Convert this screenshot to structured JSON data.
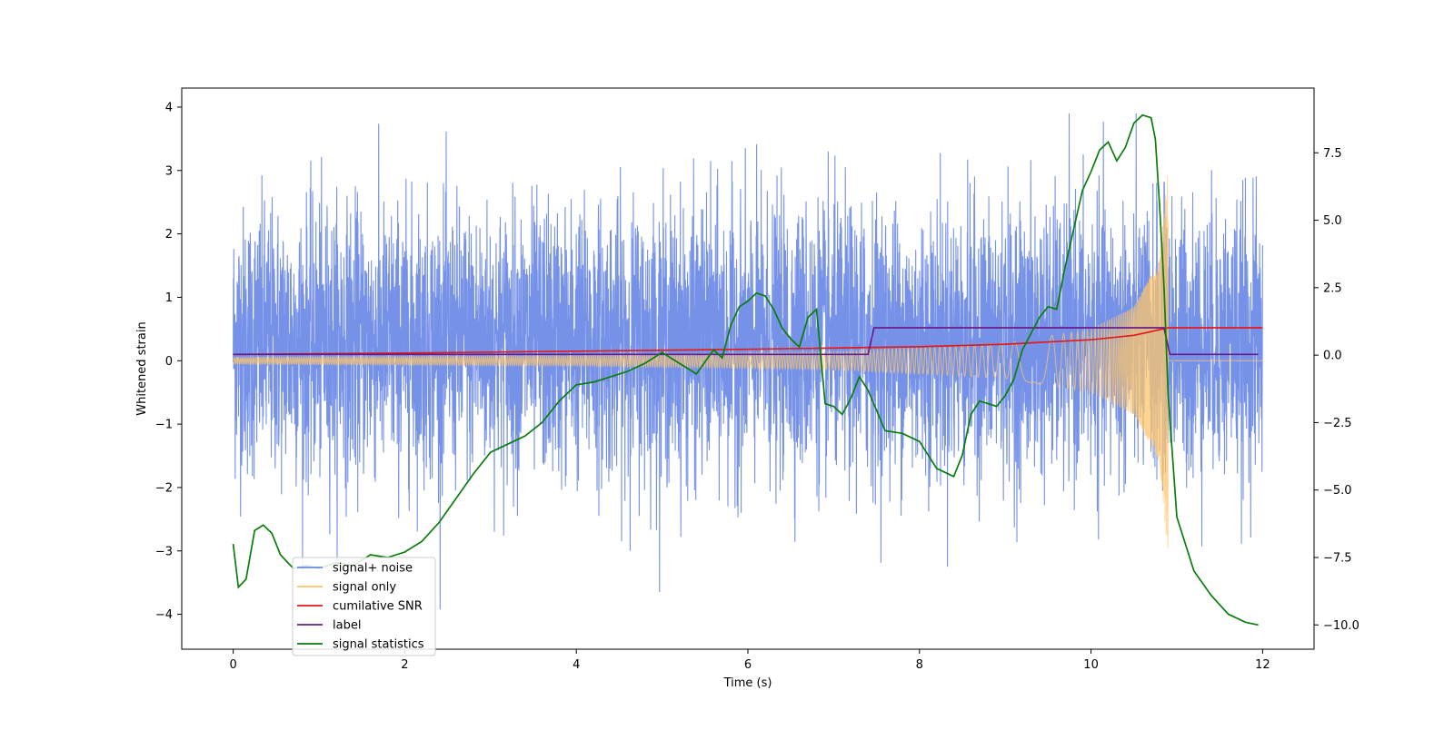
{
  "chart_data": {
    "type": "line",
    "title": "",
    "xlabel": "Time (s)",
    "ylabel": "Whitened strain",
    "xlim": [
      -0.6,
      12.6
    ],
    "ylim": [
      -4.55,
      4.3
    ],
    "y2lim": [
      -10.9,
      9.9
    ],
    "x_ticks": [
      0,
      2,
      4,
      6,
      8,
      10,
      12
    ],
    "x_tick_labels": [
      "0",
      "2",
      "4",
      "6",
      "8",
      "10",
      "12"
    ],
    "y_ticks": [
      -4,
      -3,
      -2,
      -1,
      0,
      1,
      2,
      3,
      4
    ],
    "y_tick_labels": [
      "−4",
      "−3",
      "−2",
      "−1",
      "0",
      "1",
      "2",
      "3",
      "4"
    ],
    "y2_ticks": [
      -10,
      -7.5,
      -5,
      -2.5,
      0,
      2.5,
      5,
      7.5
    ],
    "y2_tick_labels": [
      "−10.0",
      "−7.5",
      "−5.0",
      "−2.5",
      "0.0",
      "2.5",
      "5.0",
      "7.5"
    ],
    "legend_position": "lower-left",
    "series": [
      {
        "name": "signal+ noise",
        "color": "#6a89e6",
        "kind": "noise",
        "x_range": [
          0,
          12
        ],
        "mean": 0.3,
        "std": 1.05,
        "max": 3.9,
        "min": -4.1
      },
      {
        "name": "signal only",
        "color": "#ffc56b",
        "kind": "chirp",
        "x_range": [
          0,
          12
        ],
        "merger_time": 10.9,
        "envelope_points": [
          [
            0,
            0.05
          ],
          [
            4,
            0.08
          ],
          [
            7,
            0.14
          ],
          [
            9,
            0.28
          ],
          [
            10,
            0.5
          ],
          [
            10.5,
            0.85
          ],
          [
            10.8,
            1.6
          ],
          [
            10.9,
            3.1
          ]
        ]
      },
      {
        "name": "cumilative SNR",
        "color": "#e31a1a",
        "axis": "left",
        "x": [
          0,
          2,
          4,
          6,
          8,
          9,
          10,
          10.5,
          10.9,
          11,
          12
        ],
        "y": [
          0.1,
          0.12,
          0.15,
          0.18,
          0.22,
          0.26,
          0.33,
          0.4,
          0.52,
          0.52,
          0.52
        ]
      },
      {
        "name": "label",
        "color": "#6a1b8a",
        "axis": "left",
        "x": [
          0,
          7.4,
          7.47,
          10.85,
          10.92,
          11.95
        ],
        "y": [
          0.1,
          0.1,
          0.52,
          0.52,
          0.1,
          0.1
        ]
      },
      {
        "name": "signal statistics",
        "color": "#0a7d0a",
        "axis": "right",
        "x": [
          0,
          0.06,
          0.15,
          0.25,
          0.35,
          0.45,
          0.55,
          0.7,
          0.85,
          1.0,
          1.2,
          1.4,
          1.6,
          1.8,
          2.0,
          2.2,
          2.4,
          2.6,
          2.8,
          3.0,
          3.2,
          3.4,
          3.6,
          3.8,
          4.0,
          4.2,
          4.4,
          4.6,
          4.8,
          5.0,
          5.2,
          5.4,
          5.6,
          5.7,
          5.8,
          5.9,
          6.0,
          6.1,
          6.2,
          6.3,
          6.4,
          6.5,
          6.6,
          6.7,
          6.8,
          6.9,
          7.0,
          7.1,
          7.2,
          7.3,
          7.4,
          7.6,
          7.8,
          8.0,
          8.2,
          8.4,
          8.5,
          8.6,
          8.7,
          8.8,
          8.9,
          9.0,
          9.1,
          9.2,
          9.3,
          9.4,
          9.5,
          9.6,
          9.7,
          9.8,
          9.9,
          10.0,
          10.1,
          10.2,
          10.3,
          10.4,
          10.5,
          10.6,
          10.7,
          10.75,
          10.8,
          10.85,
          10.9,
          11.0,
          11.2,
          11.4,
          11.6,
          11.8,
          11.95
        ],
        "y": [
          -7.0,
          -8.6,
          -8.3,
          -6.5,
          -6.3,
          -6.6,
          -7.4,
          -7.9,
          -7.8,
          -7.9,
          -7.7,
          -7.8,
          -7.4,
          -7.5,
          -7.3,
          -6.9,
          -6.2,
          -5.3,
          -4.4,
          -3.6,
          -3.3,
          -3.0,
          -2.5,
          -1.7,
          -1.1,
          -1.0,
          -0.8,
          -0.6,
          -0.3,
          0.1,
          -0.3,
          -0.7,
          0.2,
          -0.1,
          1.1,
          1.8,
          2.0,
          2.3,
          2.2,
          1.7,
          1.0,
          0.6,
          0.3,
          1.4,
          1.7,
          -1.8,
          -1.9,
          -2.2,
          -1.6,
          -0.8,
          -1.3,
          -2.8,
          -2.9,
          -3.2,
          -4.2,
          -4.5,
          -3.7,
          -2.2,
          -1.7,
          -1.8,
          -1.9,
          -1.5,
          -0.9,
          0.2,
          0.8,
          1.4,
          1.8,
          1.7,
          3.3,
          4.7,
          6.1,
          6.8,
          7.6,
          7.9,
          7.2,
          7.7,
          8.6,
          8.9,
          8.8,
          8.0,
          5.5,
          2.6,
          -1.5,
          -6.0,
          -8.0,
          -8.9,
          -9.6,
          -9.9,
          -10.0
        ]
      }
    ]
  }
}
